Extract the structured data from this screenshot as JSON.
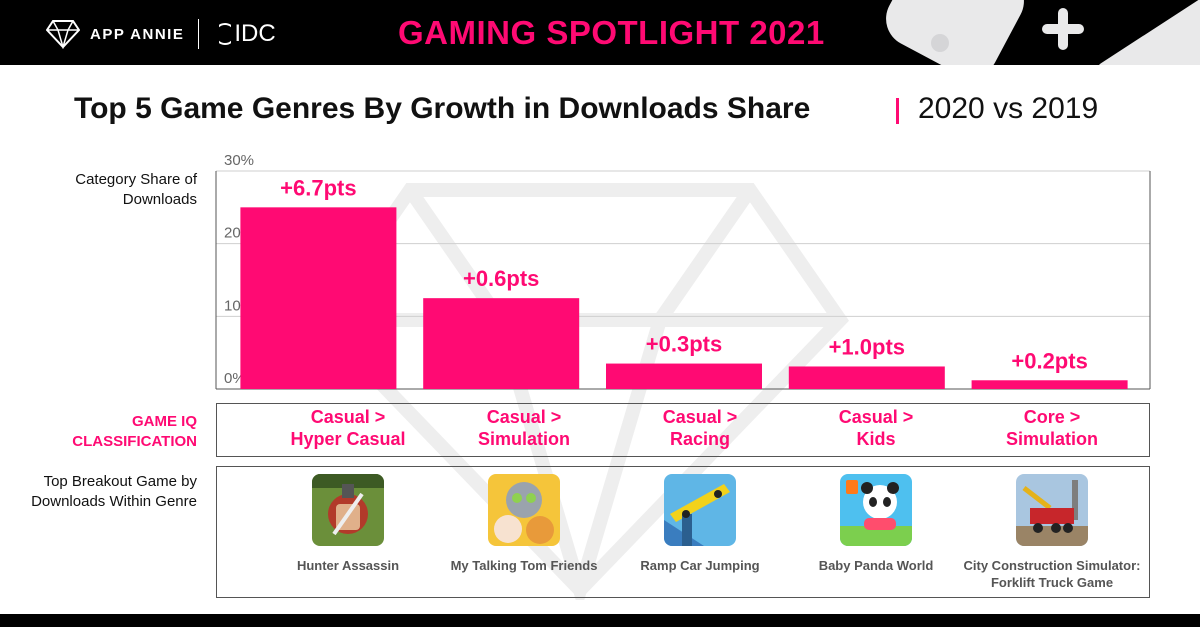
{
  "header": {
    "brand_app": "APP ANNIE",
    "brand_idc": "IDC",
    "title": "GAMING SPOTLIGHT 2021"
  },
  "heading": {
    "title": "Top 5 Game Genres By Growth in Downloads Share",
    "period": "2020 vs 2019"
  },
  "labels": {
    "share": "Category Share of Downloads",
    "classification": "GAME IQ CLASSIFICATION",
    "top_game": "Top Breakout Game by Downloads Within Genre"
  },
  "colors": {
    "accent": "#ff0a73",
    "bar": "#ff0a73",
    "header_bg": "#000000",
    "grid": "#cfcfcf"
  },
  "chart_data": {
    "type": "bar",
    "ylabel": "Category Share of Downloads",
    "ylim": [
      0,
      30
    ],
    "yticks": [
      "0%",
      "10%",
      "20%",
      "30%"
    ],
    "categories": [
      "Casual > Hyper Casual",
      "Casual > Simulation",
      "Casual > Racing",
      "Casual > Kids",
      "Core > Simulation"
    ],
    "values": [
      25,
      12.5,
      3.5,
      3.1,
      1.2
    ],
    "data_labels": [
      "+6.7pts",
      "+0.6pts",
      "+0.3pts",
      "+1.0pts",
      "+0.2pts"
    ],
    "grid": true,
    "legend": "none"
  },
  "genres": [
    {
      "line1": "Casual >",
      "line2": "Hyper Casual",
      "game": "Hunter Assassin",
      "game2": "",
      "icon": "hunter-assassin-icon"
    },
    {
      "line1": "Casual >",
      "line2": "Simulation",
      "game": "My Talking Tom Friends",
      "game2": "",
      "icon": "talking-tom-icon"
    },
    {
      "line1": "Casual >",
      "line2": "Racing",
      "game": "Ramp Car Jumping",
      "game2": "",
      "icon": "ramp-car-icon"
    },
    {
      "line1": "Casual >",
      "line2": "Kids",
      "game": "Baby Panda World",
      "game2": "",
      "icon": "baby-panda-icon"
    },
    {
      "line1": "Core >",
      "line2": "Simulation",
      "game": "City Construction Simulator:",
      "game2": "Forklift Truck Game",
      "icon": "construction-truck-icon"
    }
  ]
}
